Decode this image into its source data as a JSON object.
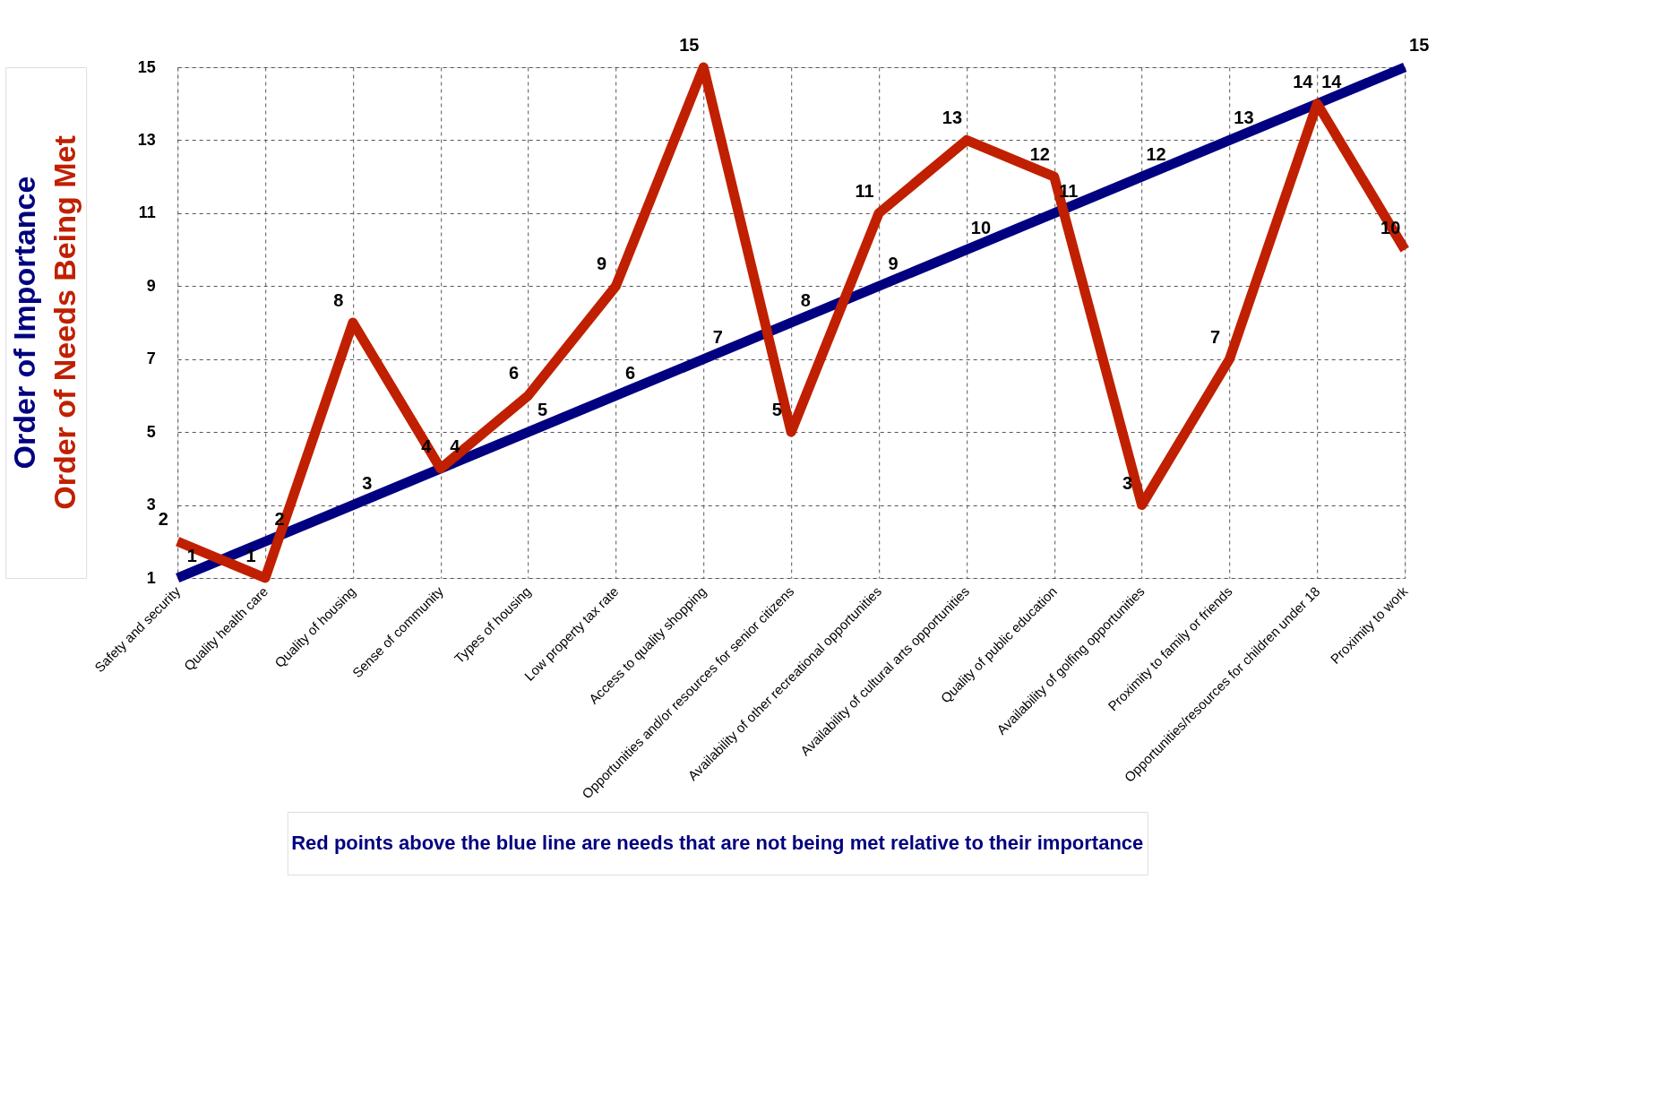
{
  "chart_data": {
    "type": "line",
    "categories": [
      "Safety and security",
      "Quality health care",
      "Quality of housing",
      "Sense of community",
      "Types of housing",
      "Low property tax rate",
      "Access to quality shopping",
      "Opportunities and/or resources for senior citizens",
      "Availability of other recreational opportunities",
      "Availability of cultural arts opportunities",
      "Quality of public education",
      "Availability of golfing opportunities",
      "Proximity to family or friends",
      "Opportunities/resources for children under 18",
      "Proximity to work"
    ],
    "series": [
      {
        "name": "Order of Importance",
        "color": "#000080",
        "values": [
          1,
          2,
          3,
          4,
          5,
          6,
          7,
          8,
          9,
          10,
          11,
          12,
          13,
          14,
          15
        ]
      },
      {
        "name": "Order of Needs Being Met",
        "color": "#c02000",
        "values": [
          2,
          1,
          8,
          4,
          6,
          9,
          15,
          5,
          11,
          13,
          12,
          3,
          7,
          14,
          10
        ]
      }
    ],
    "ylim": [
      1,
      15
    ],
    "yticks": [
      1,
      3,
      5,
      7,
      9,
      11,
      13,
      15
    ],
    "grid": true,
    "data_labels": true,
    "marker": "none",
    "line_style": "solid",
    "annotations": [
      "Red points above the blue line are needs that are not being met relative to their importance"
    ]
  }
}
